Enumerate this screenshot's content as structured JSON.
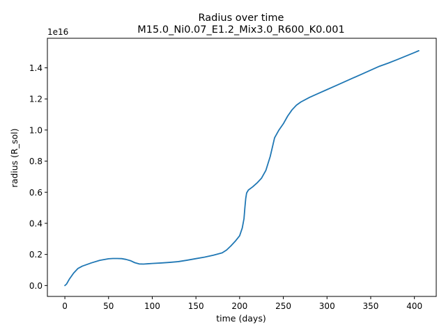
{
  "chart_data": {
    "type": "line",
    "title": "Radius  over time",
    "subtitle": "M15.0_Ni0.07_E1.2_Mix3.0_R600_K0.001",
    "xlabel": "time (days)",
    "ylabel": "radius (R_sol)",
    "offset_label": "1e16",
    "xlim": [
      -20,
      425
    ],
    "ylim": [
      -0.07,
      1.59
    ],
    "x_ticks": [
      0,
      50,
      100,
      150,
      200,
      250,
      300,
      350,
      400
    ],
    "x_tick_labels": [
      "0",
      "50",
      "100",
      "150",
      "200",
      "250",
      "300",
      "350",
      "400"
    ],
    "y_ticks": [
      0.0,
      0.2,
      0.4,
      0.6,
      0.8,
      1.0,
      1.2,
      1.4
    ],
    "y_tick_labels": [
      "0.0",
      "0.2",
      "0.4",
      "0.6",
      "0.8",
      "1.0",
      "1.2",
      "1.4"
    ],
    "grid": false,
    "series": [
      {
        "name": "",
        "color": "#1f77b4",
        "x": [
          0,
          2,
          5,
          10,
          15,
          20,
          30,
          40,
          50,
          55,
          60,
          65,
          70,
          75,
          80,
          85,
          90,
          95,
          100,
          110,
          120,
          130,
          140,
          150,
          160,
          170,
          180,
          185,
          190,
          195,
          200,
          203,
          205,
          206,
          207,
          208,
          210,
          215,
          220,
          225,
          230,
          235,
          240,
          245,
          250,
          255,
          260,
          265,
          270,
          280,
          290,
          300,
          310,
          320,
          330,
          340,
          350,
          360,
          370,
          380,
          390,
          400,
          405
        ],
        "y": [
          0.0,
          0.01,
          0.04,
          0.08,
          0.11,
          0.125,
          0.145,
          0.162,
          0.172,
          0.174,
          0.174,
          0.173,
          0.168,
          0.16,
          0.147,
          0.139,
          0.138,
          0.14,
          0.142,
          0.145,
          0.149,
          0.154,
          0.163,
          0.173,
          0.183,
          0.195,
          0.21,
          0.228,
          0.255,
          0.285,
          0.32,
          0.37,
          0.43,
          0.5,
          0.56,
          0.595,
          0.614,
          0.635,
          0.66,
          0.69,
          0.74,
          0.83,
          0.95,
          1.0,
          1.04,
          1.09,
          1.13,
          1.16,
          1.18,
          1.21,
          1.235,
          1.26,
          1.285,
          1.31,
          1.335,
          1.36,
          1.385,
          1.41,
          1.43,
          1.452,
          1.475,
          1.498,
          1.51
        ]
      }
    ]
  }
}
